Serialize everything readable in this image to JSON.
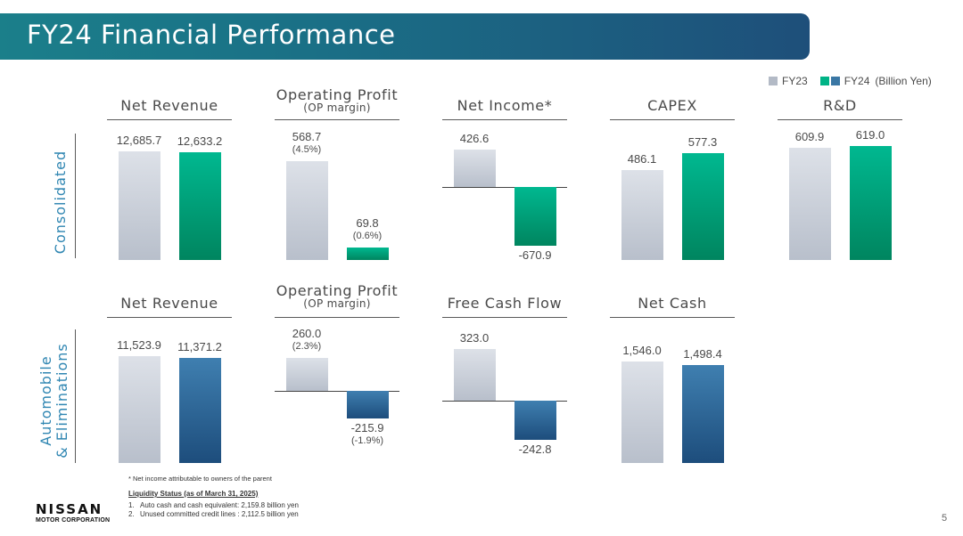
{
  "title": "FY24 Financial Performance",
  "legend": {
    "fy23": "FY23",
    "fy24": "FY24",
    "unit": "(Billion Yen)"
  },
  "colors": {
    "fy23": "#d4d9e1",
    "fy24_consolidated": "#00b386",
    "fy24_auto": "#3a77a4",
    "section_label": "#2f86b2",
    "banner": "#1b6f86"
  },
  "sections": {
    "consolidated": "Consolidated",
    "automobile_1": "Automobile",
    "automobile_2": "& Eliminations"
  },
  "footnote": "* Net income attributable to owners of the parent",
  "liquidity": {
    "title": "Liquidity Status (as of March 31, 2025)",
    "items": [
      {
        "num": "1.",
        "text": "Auto cash and cash equivalent: 2,159.8 billion yen"
      },
      {
        "num": "2.",
        "text": "Unused committed credit lines : 2,112.5 billion yen"
      }
    ]
  },
  "logo": {
    "top": "NISSAN",
    "bottom": "MOTOR CORPORATION"
  },
  "page_number": "5",
  "chart_data": [
    {
      "type": "bar",
      "section": "Consolidated",
      "title": "Net Revenue",
      "categories": [
        "FY23",
        "FY24"
      ],
      "values": [
        12685.7,
        12633.2
      ],
      "labels": [
        "12,685.7",
        "12,633.2"
      ]
    },
    {
      "type": "bar",
      "section": "Consolidated",
      "title": "Operating Profit",
      "subtitle": "(OP margin)",
      "categories": [
        "FY23",
        "FY24"
      ],
      "values": [
        568.7,
        69.8
      ],
      "labels": [
        "568.7",
        "69.8"
      ],
      "margins": [
        "(4.5%)",
        "(0.6%)"
      ]
    },
    {
      "type": "bar",
      "section": "Consolidated",
      "title": "Net Income*",
      "categories": [
        "FY23",
        "FY24"
      ],
      "values": [
        426.6,
        -670.9
      ],
      "labels": [
        "426.6",
        "-670.9"
      ]
    },
    {
      "type": "bar",
      "section": "Consolidated",
      "title": "CAPEX",
      "categories": [
        "FY23",
        "FY24"
      ],
      "values": [
        486.1,
        577.3
      ],
      "labels": [
        "486.1",
        "577.3"
      ]
    },
    {
      "type": "bar",
      "section": "Consolidated",
      "title": "R&D",
      "categories": [
        "FY23",
        "FY24"
      ],
      "values": [
        609.9,
        619.0
      ],
      "labels": [
        "609.9",
        "619.0"
      ]
    },
    {
      "type": "bar",
      "section": "Automobile & Eliminations",
      "title": "Net Revenue",
      "categories": [
        "FY23",
        "FY24"
      ],
      "values": [
        11523.9,
        11371.2
      ],
      "labels": [
        "11,523.9",
        "11,371.2"
      ]
    },
    {
      "type": "bar",
      "section": "Automobile & Eliminations",
      "title": "Operating Profit",
      "subtitle": "(OP margin)",
      "categories": [
        "FY23",
        "FY24"
      ],
      "values": [
        260.0,
        -215.9
      ],
      "labels": [
        "260.0",
        "-215.9"
      ],
      "margins": [
        "(2.3%)",
        "(-1.9%)"
      ]
    },
    {
      "type": "bar",
      "section": "Automobile & Eliminations",
      "title": "Free Cash Flow",
      "categories": [
        "FY23",
        "FY24"
      ],
      "values": [
        323.0,
        -242.8
      ],
      "labels": [
        "323.0",
        "-242.8"
      ]
    },
    {
      "type": "bar",
      "section": "Automobile & Eliminations",
      "title": "Net Cash",
      "categories": [
        "FY23",
        "FY24"
      ],
      "values": [
        1546.0,
        1498.4
      ],
      "labels": [
        "1,546.0",
        "1,498.4"
      ]
    }
  ]
}
